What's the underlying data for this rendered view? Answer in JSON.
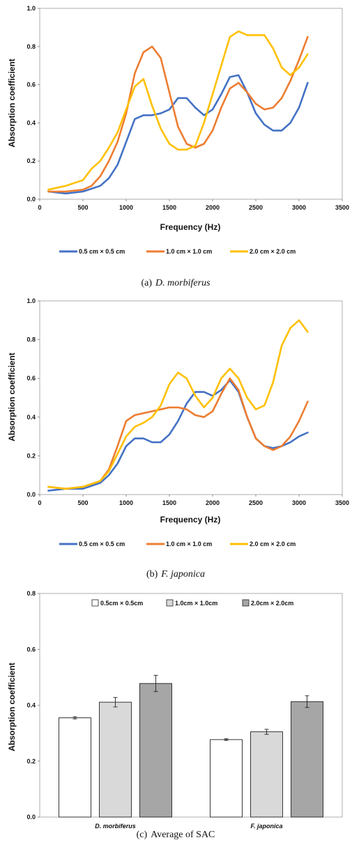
{
  "chart_data": [
    {
      "type": "line",
      "caption_prefix": "(a)",
      "caption_name": "D.  morbiferus",
      "xlabel": "Frequency (Hz)",
      "ylabel": "Absorption coefficient",
      "xlim": [
        0,
        3500
      ],
      "ylim": [
        0,
        1.0
      ],
      "xticks": [
        "0",
        "500",
        "1000",
        "1500",
        "2000",
        "2500",
        "3000",
        "3500"
      ],
      "yticks": [
        "0.0",
        "0.2",
        "0.4",
        "0.6",
        "0.8",
        "1.0"
      ],
      "grid": false,
      "legend_position": "bottom",
      "series": [
        {
          "name": "0.5 cm × 0.5 cm",
          "color": "#4472C4",
          "x": [
            100,
            300,
            500,
            700,
            800,
            900,
            1000,
            1100,
            1200,
            1300,
            1400,
            1500,
            1600,
            1700,
            1800,
            1900,
            2000,
            2100,
            2200,
            2300,
            2400,
            2500,
            2600,
            2700,
            2800,
            2900,
            3000,
            3100
          ],
          "y": [
            0.04,
            0.03,
            0.04,
            0.07,
            0.11,
            0.18,
            0.3,
            0.42,
            0.44,
            0.44,
            0.45,
            0.47,
            0.53,
            0.53,
            0.48,
            0.44,
            0.47,
            0.55,
            0.64,
            0.65,
            0.56,
            0.45,
            0.39,
            0.36,
            0.36,
            0.4,
            0.48,
            0.61
          ]
        },
        {
          "name": "1.0 cm × 1.0 cm",
          "color": "#ED7D31",
          "x": [
            100,
            300,
            500,
            600,
            700,
            800,
            900,
            1000,
            1100,
            1200,
            1300,
            1400,
            1500,
            1600,
            1700,
            1800,
            1900,
            2000,
            2100,
            2200,
            2300,
            2400,
            2500,
            2600,
            2700,
            2800,
            2900,
            3000,
            3100
          ],
          "y": [
            0.04,
            0.04,
            0.05,
            0.07,
            0.12,
            0.2,
            0.3,
            0.45,
            0.66,
            0.77,
            0.8,
            0.74,
            0.56,
            0.38,
            0.29,
            0.27,
            0.29,
            0.36,
            0.48,
            0.58,
            0.61,
            0.56,
            0.5,
            0.47,
            0.48,
            0.53,
            0.62,
            0.73,
            0.85
          ]
        },
        {
          "name": "2.0 cm × 2.0 cm",
          "color": "#FFC000",
          "x": [
            100,
            300,
            500,
            600,
            700,
            800,
            900,
            1000,
            1100,
            1200,
            1300,
            1400,
            1500,
            1600,
            1700,
            1800,
            1900,
            2000,
            2100,
            2200,
            2300,
            2400,
            2500,
            2600,
            2700,
            2800,
            2900,
            3000,
            3100
          ],
          "y": [
            0.05,
            0.07,
            0.1,
            0.16,
            0.2,
            0.27,
            0.35,
            0.47,
            0.59,
            0.63,
            0.49,
            0.37,
            0.29,
            0.26,
            0.26,
            0.28,
            0.4,
            0.55,
            0.7,
            0.85,
            0.88,
            0.86,
            0.86,
            0.86,
            0.79,
            0.69,
            0.65,
            0.69,
            0.76
          ]
        }
      ]
    },
    {
      "type": "line",
      "caption_prefix": "(b)",
      "caption_name": "F.  japonica",
      "xlabel": "Frequency (Hz)",
      "ylabel": "Absorption coefficient",
      "xlim": [
        0,
        3500
      ],
      "ylim": [
        0,
        1.0
      ],
      "xticks": [
        "0",
        "500",
        "1000",
        "1500",
        "2000",
        "2500",
        "3000",
        "3500"
      ],
      "yticks": [
        "0.0",
        "0.2",
        "0.4",
        "0.6",
        "0.8",
        "1.0"
      ],
      "grid": false,
      "legend_position": "bottom",
      "series": [
        {
          "name": "0.5 cm × 0.5 cm",
          "color": "#4472C4",
          "x": [
            100,
            300,
            500,
            700,
            800,
            900,
            1000,
            1100,
            1200,
            1300,
            1400,
            1500,
            1600,
            1700,
            1800,
            1900,
            2000,
            2100,
            2200,
            2300,
            2400,
            2500,
            2600,
            2700,
            2800,
            2900,
            3000,
            3100
          ],
          "y": [
            0.02,
            0.03,
            0.03,
            0.06,
            0.1,
            0.16,
            0.25,
            0.29,
            0.29,
            0.27,
            0.27,
            0.31,
            0.38,
            0.47,
            0.53,
            0.53,
            0.51,
            0.54,
            0.59,
            0.53,
            0.4,
            0.29,
            0.25,
            0.24,
            0.25,
            0.27,
            0.3,
            0.32
          ]
        },
        {
          "name": "1.0 cm × 1.0 cm",
          "color": "#ED7D31",
          "x": [
            100,
            300,
            500,
            700,
            800,
            900,
            1000,
            1100,
            1200,
            1300,
            1400,
            1500,
            1600,
            1700,
            1800,
            1900,
            2000,
            2100,
            2200,
            2300,
            2400,
            2500,
            2600,
            2700,
            2800,
            2900,
            3000,
            3100
          ],
          "y": [
            0.04,
            0.03,
            0.04,
            0.07,
            0.13,
            0.25,
            0.38,
            0.41,
            0.42,
            0.43,
            0.44,
            0.45,
            0.45,
            0.44,
            0.41,
            0.4,
            0.43,
            0.52,
            0.6,
            0.54,
            0.4,
            0.29,
            0.25,
            0.23,
            0.25,
            0.3,
            0.38,
            0.48
          ]
        },
        {
          "name": "2.0 cm × 2.0 cm",
          "color": "#FFC000",
          "x": [
            100,
            300,
            500,
            700,
            800,
            900,
            1000,
            1100,
            1200,
            1300,
            1400,
            1500,
            1600,
            1700,
            1800,
            1900,
            2000,
            2100,
            2200,
            2300,
            2400,
            2500,
            2600,
            2700,
            2800,
            2900,
            3000,
            3100
          ],
          "y": [
            0.04,
            0.03,
            0.04,
            0.07,
            0.12,
            0.21,
            0.3,
            0.35,
            0.37,
            0.4,
            0.46,
            0.57,
            0.63,
            0.6,
            0.51,
            0.45,
            0.5,
            0.6,
            0.65,
            0.6,
            0.5,
            0.44,
            0.46,
            0.58,
            0.77,
            0.86,
            0.9,
            0.84
          ]
        }
      ]
    },
    {
      "type": "bar",
      "caption_prefix": "(c)",
      "caption_name": "Average  of  SAC",
      "ylabel": "Absorption coefficient",
      "ylim": [
        0,
        0.8
      ],
      "yticks": [
        "0.0",
        "0.2",
        "0.4",
        "0.6",
        "0.8"
      ],
      "categories": [
        "D. morbiferus",
        "F. japonica"
      ],
      "grid": false,
      "legend_position": "top",
      "series": [
        {
          "name": "0.5cm × 0.5cm",
          "color": "#FFFFFF",
          "values": [
            0.355,
            0.277
          ],
          "errors": [
            0.004,
            0.003
          ]
        },
        {
          "name": "1.0cm × 1.0cm",
          "color": "#D9D9D9",
          "values": [
            0.411,
            0.305
          ],
          "errors": [
            0.017,
            0.009
          ]
        },
        {
          "name": "2.0cm × 2.0cm",
          "color": "#A6A6A6",
          "values": [
            0.478,
            0.413
          ],
          "errors": [
            0.029,
            0.021
          ]
        }
      ]
    }
  ]
}
